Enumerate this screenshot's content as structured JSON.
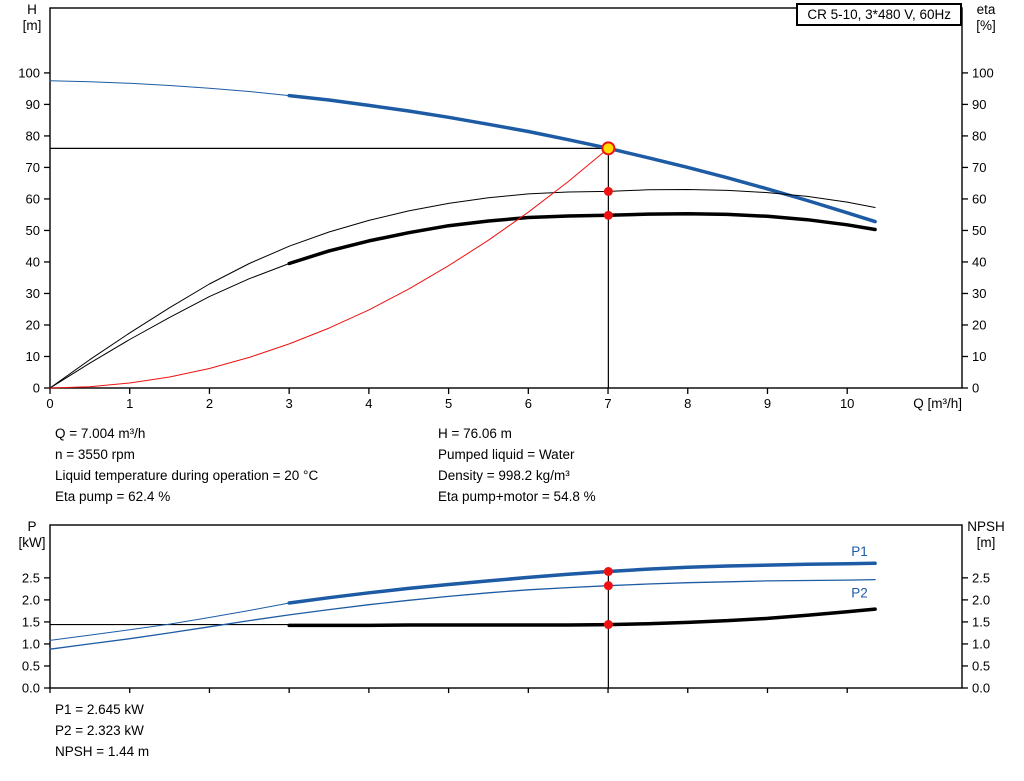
{
  "title_box": "CR 5-10, 3*480 V, 60Hz",
  "colors": {
    "blue": "#1d5ba4",
    "red": "#ee1111",
    "black": "#000000",
    "duty_yellow": "#ffdd00"
  },
  "info_top": {
    "left": [
      "Q = 7.004 m³/h",
      "n = 3550 rpm",
      "Liquid temperature during operation = 20 °C",
      "Eta pump = 62.4 %"
    ],
    "right": [
      "H = 76.06 m",
      "Pumped liquid = Water",
      "Density = 998.2 kg/m³",
      "Eta pump+motor = 54.8 %"
    ]
  },
  "info_bottom": [
    "P1 = 2.645 kW",
    "P2 = 2.323 kW",
    "NPSH = 1.44 m"
  ],
  "chart_data": [
    {
      "type": "line",
      "name": "head-efficiency-chart",
      "grid": false,
      "x": {
        "label": "Q [m³/h]",
        "min": 0,
        "max": 11.44,
        "ticks": [
          0,
          1,
          2,
          3,
          4,
          5,
          6,
          7,
          8,
          9,
          10
        ],
        "tick_labels": [
          "0",
          "1",
          "2",
          "3",
          "4",
          "5",
          "6",
          "7",
          "8",
          "9",
          "10"
        ],
        "show_tick_labels": true
      },
      "y_left": {
        "title": "H",
        "unit": "[m]",
        "min": 0,
        "max": 120.6,
        "ticks": [
          0,
          10,
          20,
          30,
          40,
          50,
          60,
          70,
          80,
          90,
          100
        ],
        "tick_labels": [
          "0",
          "10",
          "20",
          "30",
          "40",
          "50",
          "60",
          "70",
          "80",
          "90",
          "100"
        ]
      },
      "y_right": {
        "title": "eta",
        "unit": "[%]",
        "tick_labels": [
          "0",
          "10",
          "20",
          "30",
          "40",
          "50",
          "60",
          "70",
          "80",
          "90",
          "100"
        ]
      },
      "series": [
        {
          "name": "head-curve-low-flow",
          "color_key": "blue",
          "width": 1,
          "points": [
            [
              0,
              97.5
            ],
            [
              0.5,
              97.2
            ],
            [
              1,
              96.7
            ],
            [
              1.5,
              96.0
            ],
            [
              2,
              95.1
            ],
            [
              2.5,
              94.1
            ],
            [
              3,
              92.8
            ]
          ]
        },
        {
          "name": "head-curve",
          "color_key": "blue",
          "width": 3.5,
          "points": [
            [
              3,
              92.8
            ],
            [
              3.5,
              91.4
            ],
            [
              4,
              89.7
            ],
            [
              4.5,
              87.9
            ],
            [
              5,
              85.9
            ],
            [
              5.5,
              83.7
            ],
            [
              6,
              81.4
            ],
            [
              6.5,
              78.8
            ],
            [
              7.004,
              76.06
            ],
            [
              7.5,
              73.1
            ],
            [
              8,
              70.0
            ],
            [
              8.5,
              66.7
            ],
            [
              9,
              63.2
            ],
            [
              9.5,
              59.5
            ],
            [
              10,
              55.6
            ],
            [
              10.35,
              52.8
            ]
          ]
        },
        {
          "name": "eta-pump-curve",
          "color_key": "black",
          "width": 1,
          "points": [
            [
              0,
              0
            ],
            [
              0.5,
              9
            ],
            [
              1,
              17.5
            ],
            [
              1.5,
              25.5
            ],
            [
              2,
              33
            ],
            [
              2.5,
              39.5
            ],
            [
              3,
              45
            ],
            [
              3.5,
              49.5
            ],
            [
              4,
              53.2
            ],
            [
              4.5,
              56.2
            ],
            [
              5,
              58.6
            ],
            [
              5.5,
              60.4
            ],
            [
              6,
              61.6
            ],
            [
              6.5,
              62.2
            ],
            [
              7.004,
              62.4
            ],
            [
              7.5,
              62.9
            ],
            [
              8,
              63
            ],
            [
              8.5,
              62.7
            ],
            [
              9,
              62
            ],
            [
              9.5,
              60.8
            ],
            [
              10,
              59
            ],
            [
              10.35,
              57.3
            ]
          ]
        },
        {
          "name": "eta-pump-motor-curve-low-flow",
          "color_key": "black",
          "width": 1,
          "points": [
            [
              0,
              0
            ],
            [
              0.5,
              7.9
            ],
            [
              1,
              15.4
            ],
            [
              1.5,
              22.4
            ],
            [
              2,
              29
            ],
            [
              2.5,
              34.7
            ],
            [
              3,
              39.5
            ]
          ]
        },
        {
          "name": "eta-pump-motor-curve",
          "color_key": "black",
          "width": 3.5,
          "points": [
            [
              3,
              39.5
            ],
            [
              3.5,
              43.5
            ],
            [
              4,
              46.7
            ],
            [
              4.5,
              49.3
            ],
            [
              5,
              51.5
            ],
            [
              5.5,
              53
            ],
            [
              6,
              54.1
            ],
            [
              6.5,
              54.6
            ],
            [
              7.004,
              54.8
            ],
            [
              7.5,
              55.2
            ],
            [
              8,
              55.3
            ],
            [
              8.5,
              55.1
            ],
            [
              9,
              54.5
            ],
            [
              9.5,
              53.4
            ],
            [
              10,
              51.8
            ],
            [
              10.35,
              50.3
            ]
          ]
        },
        {
          "name": "system-curve",
          "color_key": "red",
          "width": 1,
          "points": [
            [
              0,
              0
            ],
            [
              0.5,
              0.4
            ],
            [
              1,
              1.6
            ],
            [
              1.5,
              3.5
            ],
            [
              2,
              6.2
            ],
            [
              2.5,
              9.7
            ],
            [
              3,
              14
            ],
            [
              3.5,
              19
            ],
            [
              4,
              24.8
            ],
            [
              4.5,
              31.4
            ],
            [
              5,
              38.8
            ],
            [
              5.5,
              46.9
            ],
            [
              6,
              55.8
            ],
            [
              6.5,
              65.5
            ],
            [
              7.004,
              76.06
            ]
          ]
        }
      ],
      "ref_lines": [
        {
          "name": "duty-head-line",
          "orient": "h",
          "at": 76.06,
          "from": 0,
          "to": 7.004
        },
        {
          "name": "duty-flow-line",
          "orient": "v",
          "at": 7.004,
          "from": 0,
          "to": 76.06
        }
      ],
      "markers": [
        {
          "name": "duty-point",
          "x": 7.004,
          "y": 76.06,
          "r": 6,
          "fill_key": "duty_yellow",
          "stroke_key": "red",
          "stroke_width": 2
        },
        {
          "name": "eta-pump-duty-point",
          "x": 7.004,
          "y": 62.4,
          "r": 4.5,
          "fill_key": "red"
        },
        {
          "name": "eta-pump-motor-duty-point",
          "x": 7.004,
          "y": 54.8,
          "r": 4.5,
          "fill_key": "red"
        }
      ],
      "annotations": []
    },
    {
      "type": "line",
      "name": "power-npsh-chart",
      "grid": false,
      "x": {
        "label": "",
        "min": 0,
        "max": 11.44,
        "ticks": [
          0,
          1,
          2,
          3,
          4,
          5,
          6,
          7,
          8,
          9,
          10
        ],
        "tick_labels": [],
        "show_tick_labels": false
      },
      "y_left": {
        "title": "P",
        "unit": "[kW]",
        "min": 0,
        "max": 3.7,
        "ticks": [
          0,
          0.5,
          1,
          1.5,
          2,
          2.5
        ],
        "tick_labels": [
          "0.0",
          "0.5",
          "1.0",
          "1.5",
          "2.0",
          "2.5"
        ]
      },
      "y_right": {
        "title": "NPSH",
        "unit": "[m]",
        "tick_labels": [
          "0.0",
          "0.5",
          "1.0",
          "1.5",
          "2.0",
          "2.5"
        ]
      },
      "series": [
        {
          "name": "p1-curve-low-flow",
          "color_key": "blue",
          "width": 1,
          "points": [
            [
              0,
              1.08
            ],
            [
              0.5,
              1.2
            ],
            [
              1,
              1.32
            ],
            [
              1.5,
              1.45
            ],
            [
              2,
              1.6
            ],
            [
              2.5,
              1.76
            ],
            [
              3,
              1.93
            ]
          ]
        },
        {
          "name": "p1-curve",
          "color_key": "blue",
          "width": 3.5,
          "points": [
            [
              3,
              1.93
            ],
            [
              3.5,
              2.05
            ],
            [
              4,
              2.16
            ],
            [
              4.5,
              2.26
            ],
            [
              5,
              2.35
            ],
            [
              5.5,
              2.43
            ],
            [
              6,
              2.51
            ],
            [
              6.5,
              2.58
            ],
            [
              7.004,
              2.645
            ],
            [
              7.5,
              2.7
            ],
            [
              8,
              2.74
            ],
            [
              8.5,
              2.77
            ],
            [
              9,
              2.79
            ],
            [
              9.5,
              2.81
            ],
            [
              10,
              2.82
            ],
            [
              10.35,
              2.83
            ]
          ]
        },
        {
          "name": "p2-curve",
          "color_key": "blue",
          "width": 1.3,
          "points": [
            [
              0,
              0.88
            ],
            [
              0.5,
              1.0
            ],
            [
              1,
              1.12
            ],
            [
              1.5,
              1.25
            ],
            [
              2,
              1.39
            ],
            [
              2.5,
              1.53
            ],
            [
              3,
              1.66
            ],
            [
              3.5,
              1.78
            ],
            [
              4,
              1.89
            ],
            [
              4.5,
              1.99
            ],
            [
              5,
              2.08
            ],
            [
              5.5,
              2.16
            ],
            [
              6,
              2.23
            ],
            [
              6.5,
              2.28
            ],
            [
              7.004,
              2.323
            ],
            [
              7.5,
              2.36
            ],
            [
              8,
              2.39
            ],
            [
              8.5,
              2.41
            ],
            [
              9,
              2.43
            ],
            [
              9.5,
              2.44
            ],
            [
              10,
              2.45
            ],
            [
              10.35,
              2.46
            ]
          ]
        },
        {
          "name": "npsh-curve",
          "color_key": "black",
          "width": 3.5,
          "points": [
            [
              3,
              1.42
            ],
            [
              3.5,
              1.42
            ],
            [
              4,
              1.42
            ],
            [
              4.5,
              1.43
            ],
            [
              5,
              1.43
            ],
            [
              5.5,
              1.43
            ],
            [
              6,
              1.43
            ],
            [
              6.5,
              1.43
            ],
            [
              7.004,
              1.44
            ],
            [
              7.5,
              1.46
            ],
            [
              8,
              1.49
            ],
            [
              8.5,
              1.53
            ],
            [
              9,
              1.58
            ],
            [
              9.5,
              1.65
            ],
            [
              10,
              1.73
            ],
            [
              10.35,
              1.79
            ]
          ]
        }
      ],
      "ref_lines": [
        {
          "name": "npsh-duty-line",
          "orient": "h",
          "at": 1.44,
          "from": 0,
          "to": 7.004
        },
        {
          "name": "duty-flow-line",
          "orient": "v",
          "at": 7.004,
          "from": 0,
          "to": 2.645
        }
      ],
      "markers": [
        {
          "name": "p1-duty-point",
          "x": 7.004,
          "y": 2.645,
          "r": 4.5,
          "fill_key": "red"
        },
        {
          "name": "p2-duty-point",
          "x": 7.004,
          "y": 2.323,
          "r": 4.5,
          "fill_key": "red"
        },
        {
          "name": "npsh-duty-point",
          "x": 7.004,
          "y": 1.44,
          "r": 4.5,
          "fill_key": "red"
        }
      ],
      "annotations": [
        {
          "name": "p1-label",
          "text": "P1",
          "x": 10.05,
          "y": 3.0,
          "color_key": "blue"
        },
        {
          "name": "p2-label",
          "text": "P2",
          "x": 10.05,
          "y": 2.05,
          "color_key": "blue"
        }
      ]
    }
  ]
}
